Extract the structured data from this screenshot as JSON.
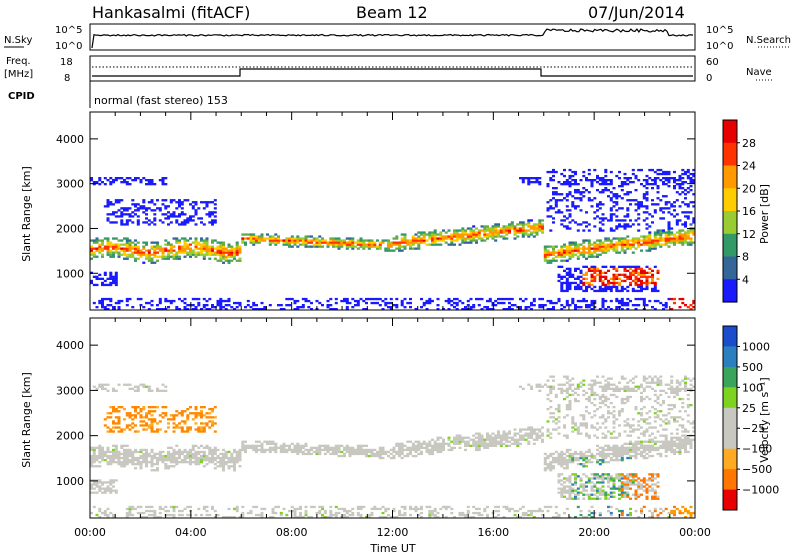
{
  "header": {
    "station": "Hankasalmi (fitACF)",
    "beam": "Beam 12",
    "date": "07/Jun/2014"
  },
  "top_panels": {
    "nsky_label": "N.Sky",
    "nsearch_label": "N.Search",
    "nsky_ticks": [
      "10^5",
      "10^0"
    ],
    "nsearch_ticks": [
      "10^5",
      "10^0"
    ],
    "freq_label_1": "Freq.",
    "freq_label_2": "[MHz]",
    "freq_ticks": [
      "18",
      "8"
    ],
    "nave_label": "Nave",
    "nave_ticks": [
      "60",
      "0"
    ],
    "cpid_label": "CPID",
    "cpid_value": "normal (fast stereo) 153"
  },
  "chart_data": [
    {
      "type": "heatmap",
      "name": "Power",
      "xlabel": "Time UT",
      "ylabel": "Slant Range [km]",
      "x_ticks": [
        "00:00",
        "04:00",
        "08:00",
        "12:00",
        "16:00",
        "20:00",
        "00:00"
      ],
      "y_ticks": [
        "1000",
        "2000",
        "3000",
        "4000"
      ],
      "x_range_hours": [
        0,
        24
      ],
      "y_range_km": [
        180,
        4600
      ],
      "colorbar_label": "Power [dB]",
      "colorbar_ticks": [
        "28",
        "24",
        "20",
        "16",
        "12",
        "8",
        "4"
      ],
      "colorbar_colors": [
        "#e60000",
        "#ff3300",
        "#ff9900",
        "#ffcc00",
        "#99cc33",
        "#339966",
        "#336699",
        "#1a1aff"
      ]
    },
    {
      "type": "heatmap",
      "name": "Velocity",
      "xlabel": "Time UT",
      "ylabel": "Slant Range [km]",
      "x_ticks": [
        "00:00",
        "04:00",
        "08:00",
        "12:00",
        "16:00",
        "20:00",
        "00:00"
      ],
      "y_ticks": [
        "1000",
        "2000",
        "3000",
        "4000"
      ],
      "x_range_hours": [
        0,
        24
      ],
      "y_range_km": [
        180,
        4600
      ],
      "colorbar_label": "Velocity [m s⁻¹]",
      "colorbar_ticks": [
        "1000",
        "500",
        "100",
        "25",
        "−25",
        "−100",
        "−500",
        "−1000"
      ],
      "colorbar_colors": [
        "#1a4dcc",
        "#2b7fbf",
        "#3aa55a",
        "#7ed321",
        "#c8c8c0",
        "#c8c8c0",
        "#ffaa22",
        "#ff7700",
        "#e60000"
      ]
    }
  ]
}
